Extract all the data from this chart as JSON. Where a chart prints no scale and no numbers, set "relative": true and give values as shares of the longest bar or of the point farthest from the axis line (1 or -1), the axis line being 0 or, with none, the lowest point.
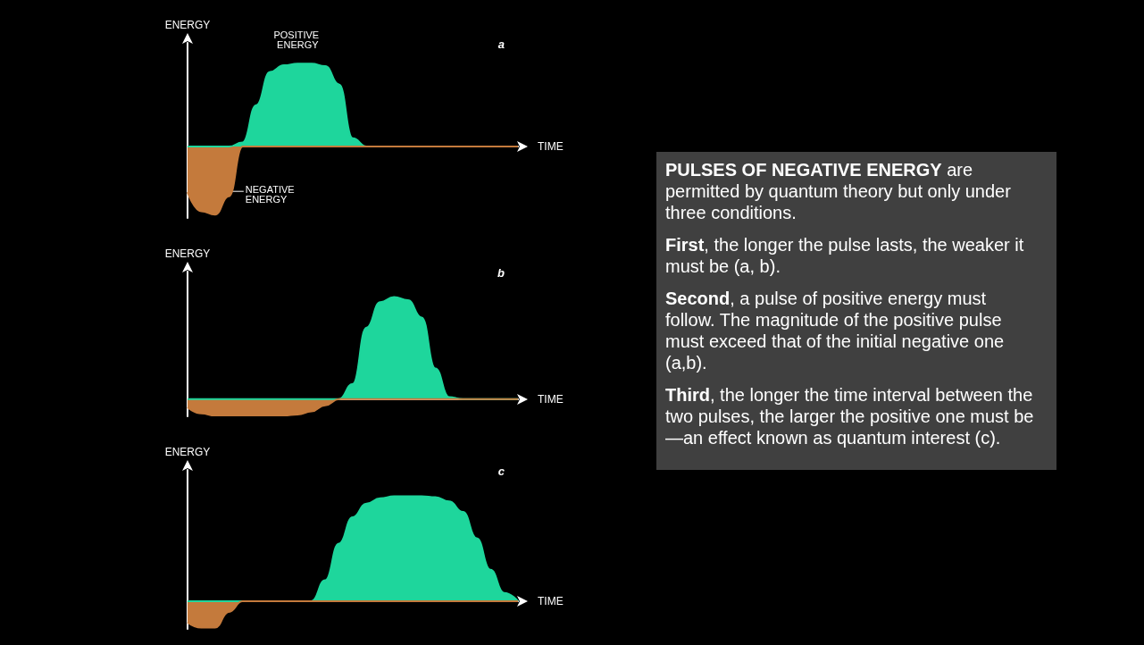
{
  "chart_data": [
    {
      "type": "area",
      "relative": true,
      "title": "a",
      "xlabel": "TIME",
      "ylabel": "ENERGY",
      "categories": [
        null,
        null,
        null,
        null,
        null,
        null,
        null,
        null,
        null,
        null,
        null,
        null,
        null,
        null,
        null,
        null,
        null,
        null,
        null,
        null,
        null,
        null,
        null,
        null,
        null
      ],
      "annotations": [
        "POSITIVE ENERGY",
        "NEGATIVE ENERGY"
      ],
      "series": [
        {
          "color": "#1ed69c",
          "values": [
            0,
            0,
            0,
            0,
            0.05,
            0.5,
            0.9,
            0.98,
            1,
            1,
            0.97,
            0.75,
            0.1,
            0,
            0,
            0,
            0,
            0,
            0,
            0,
            0,
            0,
            0,
            0,
            0
          ]
        },
        {
          "color": "#c47a3c",
          "values": [
            -0.55,
            -0.78,
            -0.82,
            -0.6,
            0,
            0,
            0,
            0,
            0,
            0,
            0,
            0,
            0,
            0,
            0,
            0,
            0,
            0,
            0,
            0,
            0,
            0,
            0,
            0,
            0
          ]
        }
      ]
    },
    {
      "type": "area",
      "relative": true,
      "title": "b",
      "xlabel": "TIME",
      "ylabel": "ENERGY",
      "categories": [
        null,
        null,
        null,
        null,
        null,
        null,
        null,
        null,
        null,
        null,
        null,
        null,
        null,
        null,
        null,
        null,
        null,
        null,
        null,
        null,
        null,
        null,
        null,
        null,
        null
      ],
      "series": [
        {
          "color": "#1ed69c",
          "values": [
            0,
            0,
            0,
            0,
            0,
            0,
            0,
            0,
            0,
            0,
            0,
            0,
            0.15,
            0.7,
            0.95,
            1,
            0.97,
            0.8,
            0.3,
            0.02,
            0,
            0,
            0,
            0,
            0
          ]
        },
        {
          "color": "#c47a3c",
          "values": [
            -0.08,
            -0.14,
            -0.16,
            -0.16,
            -0.16,
            -0.16,
            -0.16,
            -0.16,
            -0.15,
            -0.12,
            -0.06,
            0,
            0,
            0,
            0,
            0,
            0,
            0,
            0,
            0,
            0,
            0,
            0,
            0,
            0
          ]
        }
      ]
    },
    {
      "type": "area",
      "relative": true,
      "title": "c",
      "xlabel": "TIME",
      "ylabel": "ENERGY",
      "categories": [
        null,
        null,
        null,
        null,
        null,
        null,
        null,
        null,
        null,
        null,
        null,
        null,
        null,
        null,
        null,
        null,
        null,
        null,
        null,
        null,
        null,
        null,
        null,
        null,
        null
      ],
      "series": [
        {
          "color": "#1ed69c",
          "values": [
            0,
            0,
            0,
            0,
            0,
            0,
            0,
            0,
            0,
            0,
            0.2,
            0.55,
            0.8,
            0.93,
            0.98,
            1,
            1,
            1,
            0.99,
            0.95,
            0.85,
            0.6,
            0.3,
            0.08,
            0
          ]
        },
        {
          "color": "#c47a3c",
          "values": [
            -0.2,
            -0.25,
            -0.25,
            -0.1,
            0,
            0,
            0,
            0,
            0,
            0,
            0,
            0,
            0,
            0,
            0,
            0,
            0,
            0,
            0,
            0,
            0,
            0,
            0,
            0,
            0
          ]
        }
      ]
    },
    {
      "type": "other",
      "title": "PULSES OF NEGATIVE ENERGY",
      "subtitle": "are permitted by quantum theory but only under three conditions.",
      "annotations": [
        "First, the longer the pulse lasts, the weaker it must be (a, b).",
        "Second, a pulse of positive energy must follow. The magnitude of the positive pulse must exceed that of the initial negative one (a,b).",
        "Third, the longer the time interval between the two pulses, the larger the positive one must be—an effect known as quantum interest (c)."
      ]
    }
  ]
}
